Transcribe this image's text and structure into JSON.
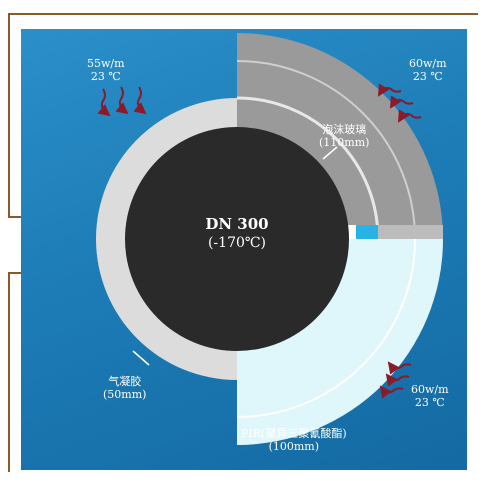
{
  "pipe": {
    "name": "DN 300",
    "temp": "(-170℃)"
  },
  "labels": {
    "top_left": {
      "line1": "55w/m",
      "line2": "23 ℃"
    },
    "top_right": {
      "line1": "60w/m",
      "line2": "23 ℃"
    },
    "foam": {
      "line1": "泡沫玻璃",
      "line2": "(110mm)"
    },
    "aerogel": {
      "line1": "气凝胶",
      "line2": "(50mm)"
    },
    "bottom_right": {
      "line1": "60w/m",
      "line2": "23 ℃"
    },
    "pir": {
      "line1": "PIR(聚异三聚氰酸酯)",
      "line2": "(100mm)"
    }
  },
  "colors": {
    "background": "#1d7cb6",
    "pipe_core": "#2a2a2a",
    "aerogel": "#dcdcdc",
    "foam_glass": "#9a9a9a",
    "pir": "#dff6fb",
    "heat_arrow": "#8b1a2a"
  }
}
